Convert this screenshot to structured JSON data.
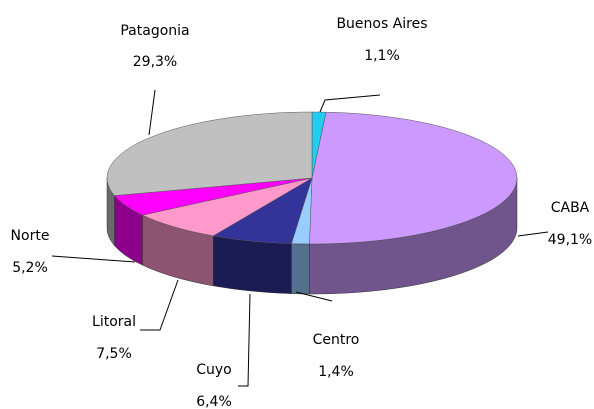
{
  "chart_data": {
    "type": "pie3d",
    "categories": [
      "Buenos Aires",
      "CABA",
      "Centro",
      "Cuyo",
      "Litoral",
      "Norte",
      "Patagonia"
    ],
    "values": [
      1.1,
      49.1,
      1.4,
      6.4,
      7.5,
      5.2,
      29.3
    ],
    "value_labels": [
      "1,1%",
      "49,1%",
      "1,4%",
      "6,4%",
      "7,5%",
      "5,2%",
      "29,3%"
    ],
    "colors": [
      "#22ccee",
      "#cc99ff",
      "#99ccff",
      "#333399",
      "#ff99cc",
      "#ff00ff",
      "#c0c0c0"
    ]
  }
}
